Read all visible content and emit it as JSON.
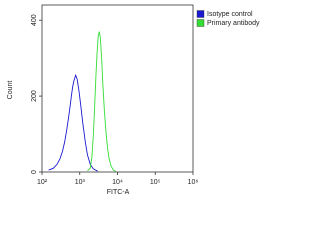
{
  "chart_data": {
    "type": "line",
    "xlabel": "FITC-A",
    "ylabel": "Count",
    "xscale": "log",
    "xlim": [
      100,
      1000000
    ],
    "ylim": [
      0,
      440
    ],
    "xticks": [
      {
        "value": 100,
        "label": "10²"
      },
      {
        "value": 1000,
        "label": "10³"
      },
      {
        "value": 10000,
        "label": "10⁴"
      },
      {
        "value": 100000,
        "label": "10⁵"
      },
      {
        "value": 1000000,
        "label": "10⁶"
      }
    ],
    "yticks": [
      0,
      200,
      400
    ],
    "series": [
      {
        "name": "Isotype control",
        "color": "#1a1ad0",
        "x": [
          150,
          200,
          250,
          300,
          350,
          400,
          450,
          500,
          550,
          600,
          650,
          700,
          780,
          850,
          950,
          1050,
          1200,
          1400,
          1600,
          1900,
          2300,
          3000
        ],
        "values": [
          5,
          10,
          20,
          35,
          55,
          80,
          110,
          140,
          170,
          200,
          225,
          240,
          255,
          245,
          215,
          180,
          130,
          80,
          45,
          20,
          8,
          2
        ]
      },
      {
        "name": "Primary antibody",
        "color": "#33dd33",
        "x": [
          1600,
          1900,
          2100,
          2300,
          2500,
          2700,
          2900,
          3100,
          3300,
          3500,
          3800,
          4100,
          4500,
          5000,
          5500,
          6000,
          6800,
          7800,
          9000
        ],
        "values": [
          3,
          10,
          40,
          100,
          180,
          260,
          320,
          360,
          370,
          355,
          300,
          230,
          160,
          100,
          60,
          35,
          15,
          5,
          2
        ]
      }
    ]
  }
}
